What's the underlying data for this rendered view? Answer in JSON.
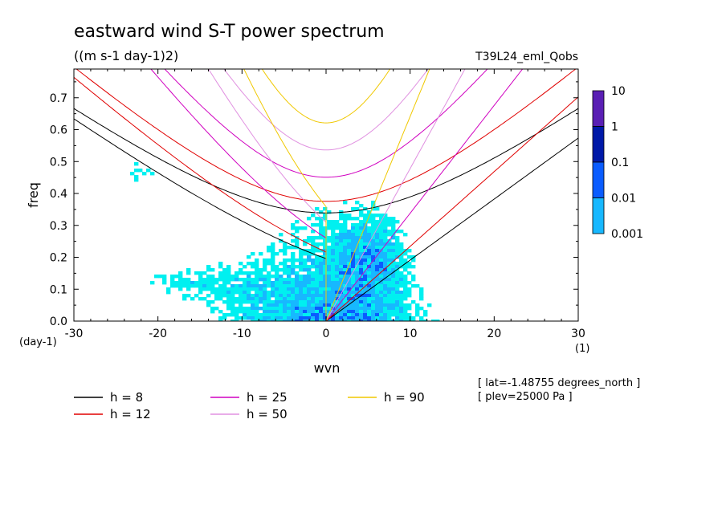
{
  "chart_data": {
    "type": "heatmap",
    "title": "eastward wind S-T power spectrum",
    "subtitle": "((m s-1 day-1)2)",
    "run_label": "T39L24_eml_Qobs",
    "xlabel": "wvn",
    "ylabel": "freq",
    "x_unit": "(1)",
    "y_unit": "(day-1)",
    "xlim": [
      -30,
      30
    ],
    "ylim": [
      0,
      0.79
    ],
    "x_ticks": [
      "-30",
      "-20",
      "-10",
      "0",
      "10",
      "20",
      "30"
    ],
    "y_ticks": [
      "0.0",
      "0.1",
      "0.2",
      "0.3",
      "0.4",
      "0.5",
      "0.6",
      "0.7"
    ],
    "colorbar": {
      "levels": [
        "10",
        "1",
        "0.1",
        "0.01",
        "0.001"
      ],
      "colors": [
        "#5a1fb4",
        "#0019a8",
        "#0a5cff",
        "#17b8ff",
        "#00f0f0"
      ]
    },
    "series": [
      {
        "name": "h =  8",
        "color": "#000000",
        "h": 8
      },
      {
        "name": "h = 12",
        "color": "#e00000",
        "h": 12
      },
      {
        "name": "h = 25",
        "color": "#d000c0",
        "h": 25
      },
      {
        "name": "h = 50",
        "color": "#e090e0",
        "h": 50
      },
      {
        "name": "h = 90",
        "color": "#f0c800",
        "h": 90
      }
    ],
    "notes": [
      "[ lat=-1.48755 degrees_north ]",
      "[ plev=25000 Pa ]"
    ],
    "grid": false
  }
}
